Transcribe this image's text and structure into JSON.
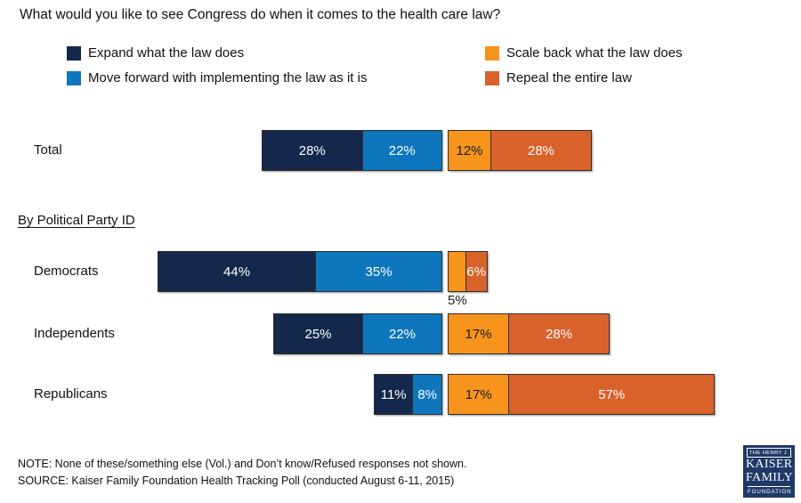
{
  "title": "What would you like to see Congress do when it comes to the health care law?",
  "section_heading": "By Political Party ID",
  "colors": {
    "expand": "#13284B",
    "move_forward": "#0E76BD",
    "scale_back": "#F7941E",
    "repeal": "#D9622B",
    "bar_border": "#2f2f2f",
    "logo_bg": "#1F3A68"
  },
  "legend": [
    {
      "color_key": "expand",
      "label": "Expand what the law does"
    },
    {
      "color_key": "move_forward",
      "label": "Move forward with implementing the law as it is"
    },
    {
      "color_key": "scale_back",
      "label": "Scale back what the law does"
    },
    {
      "color_key": "repeal",
      "label": "Repeal the entire law"
    }
  ],
  "chart_data": {
    "type": "bar",
    "orientation": "horizontal-diverging",
    "title": "What would you like to see Congress do when it comes to the health care law?",
    "unit": "%",
    "legend_position": "top",
    "axis": "none",
    "categories": [
      "Total",
      "Democrats",
      "Independents",
      "Republicans"
    ],
    "series": [
      {
        "key": "expand",
        "name": "Expand what the law does",
        "side": "left",
        "values": [
          28,
          44,
          25,
          11
        ]
      },
      {
        "key": "move_forward",
        "name": "Move forward with implementing the law as it is",
        "side": "left",
        "values": [
          22,
          35,
          22,
          8
        ]
      },
      {
        "key": "scale_back",
        "name": "Scale back what the law does",
        "side": "right",
        "values": [
          12,
          5,
          17,
          17
        ]
      },
      {
        "key": "repeal",
        "name": "Repeal the entire law",
        "side": "right",
        "values": [
          28,
          6,
          28,
          57
        ]
      }
    ],
    "outside_labels": [
      {
        "category": "Democrats",
        "series_key": "scale_back"
      }
    ]
  },
  "footer": {
    "note": "NOTE: None of these/something else (Vol.) and Don’t know/Refused responses not shown.",
    "source": "SOURCE: Kaiser Family Foundation Health Tracking Poll (conducted August 6-11, 2015)"
  },
  "logo": {
    "line1": "THE HENRY J.",
    "line2": "KAISER",
    "line3": "FAMILY",
    "line4": "FOUNDATION"
  }
}
